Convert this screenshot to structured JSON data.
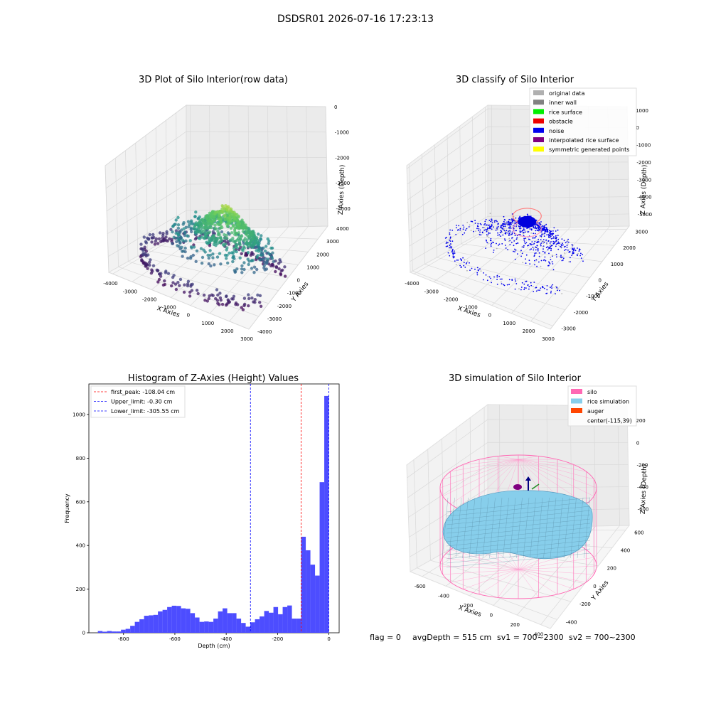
{
  "suptitle": "DSDSR01 2026-07-16 17:23:13",
  "status": {
    "flag": "flag = 0",
    "avg_depth": "avgDepth = 515 cm",
    "sv1": "sv1 = 700~2300",
    "sv2": "sv2 = 700~2300"
  },
  "chart_data": [
    {
      "type": "scatter",
      "title": "3D Plot of Silo Interior(row data)",
      "xlabel": "X Axies",
      "ylabel": "Y Axies",
      "zlabel": "Z Axies (Depth)",
      "x_ticks": [
        -4000,
        -3000,
        -2000,
        -1000,
        0,
        1000,
        2000,
        3000
      ],
      "y_ticks": [
        -4000,
        -3000,
        -2000,
        -1000,
        0,
        1000,
        2000,
        3000,
        4000
      ],
      "z_ticks": [
        -4000,
        -3000,
        -2000,
        -1000,
        0
      ],
      "xlim": [
        -4200,
        3000
      ],
      "ylim": [
        -4000,
        4000
      ],
      "zlim": [
        -4700,
        0
      ],
      "grid": true,
      "colormap": "viridis"
    },
    {
      "type": "scatter",
      "title": "3D classify of Silo Interior",
      "xlabel": "X Axies",
      "ylabel": "Y Axies",
      "zlabel": "Z Axies (Depth)",
      "x_ticks": [
        -4000,
        -3000,
        -2000,
        -1000,
        0,
        1000,
        2000,
        3000
      ],
      "y_ticks": [
        -3000,
        -2000,
        -1000,
        0,
        1000,
        2000,
        3000
      ],
      "z_ticks": [
        -5000,
        -4000,
        -3000,
        -2000,
        -1000,
        0,
        1000
      ],
      "xlim": [
        -4200,
        3000
      ],
      "ylim": [
        -3200,
        3200
      ],
      "zlim": [
        -5700,
        1200
      ],
      "grid": true,
      "legend_position": "top-right",
      "legend": [
        {
          "label": "original data",
          "color": "#b0b0b0"
        },
        {
          "label": "inner wall",
          "color": "#808080"
        },
        {
          "label": "rice surface",
          "color": "#00ee00"
        },
        {
          "label": "obstacle",
          "color": "#ee0000"
        },
        {
          "label": "noise",
          "color": "#0000ee"
        },
        {
          "label": "interpolated rice surface",
          "color": "#800080"
        },
        {
          "label": "symmetric generated points",
          "color": "#ffff00"
        }
      ]
    },
    {
      "type": "bar",
      "title": "Histogram of Z-Axies (Height) Values",
      "xlabel": "Depth (cm)",
      "ylabel": "Frequency",
      "xlim": [
        -935,
        40
      ],
      "ylim": [
        0,
        1140
      ],
      "x_ticks": [
        -800,
        -600,
        -400,
        -200,
        0
      ],
      "y_ticks": [
        0,
        200,
        400,
        600,
        800,
        1000
      ],
      "bin_start": -900,
      "bin_width": 18,
      "bar_color": "#4d4dff",
      "values": [
        8,
        5,
        8,
        6,
        6,
        14,
        18,
        32,
        50,
        62,
        78,
        80,
        82,
        98,
        105,
        118,
        124,
        123,
        112,
        110,
        90,
        70,
        50,
        52,
        50,
        65,
        98,
        112,
        90,
        90,
        65,
        45,
        28,
        48,
        62,
        75,
        100,
        92,
        118,
        85,
        118,
        125,
        65,
        65,
        440,
        378,
        312,
        262,
        690,
        1085
      ],
      "grid": false,
      "legend_position": "top-left",
      "vlines": [
        {
          "label": "first_peak: -108.04 cm",
          "x": -108.04,
          "color": "#ff0000"
        },
        {
          "label": "Upper_limit: -0.30 cm",
          "x": -0.3,
          "color": "#0000ff"
        },
        {
          "label": "Lower_limit: -305.55 cm",
          "x": -305.55,
          "color": "#0000ff"
        }
      ]
    },
    {
      "type": "scatter",
      "title": "3D simulation of Silo Interior",
      "xlabel": "X Axies",
      "ylabel": "Y Axies",
      "zlabel": "Z Axies (Depth)",
      "x_ticks": [
        -600,
        -400,
        -200,
        0,
        200,
        400
      ],
      "y_ticks": [
        -400,
        -200,
        0,
        200,
        400,
        600
      ],
      "z_ticks": [
        -600,
        -400,
        -200,
        0,
        200
      ],
      "xlim": [
        -700,
        480
      ],
      "ylim": [
        -500,
        650
      ],
      "zlim": [
        -750,
        330
      ],
      "grid": true,
      "legend_position": "top-right",
      "legend": [
        {
          "label": "silo",
          "color": "#ff69b4"
        },
        {
          "label": "rice simulation",
          "color": "#87ceeb"
        },
        {
          "label": "auger",
          "color": "#ff4500"
        },
        {
          "label": "center(-115,39)",
          "color": ""
        }
      ]
    }
  ]
}
